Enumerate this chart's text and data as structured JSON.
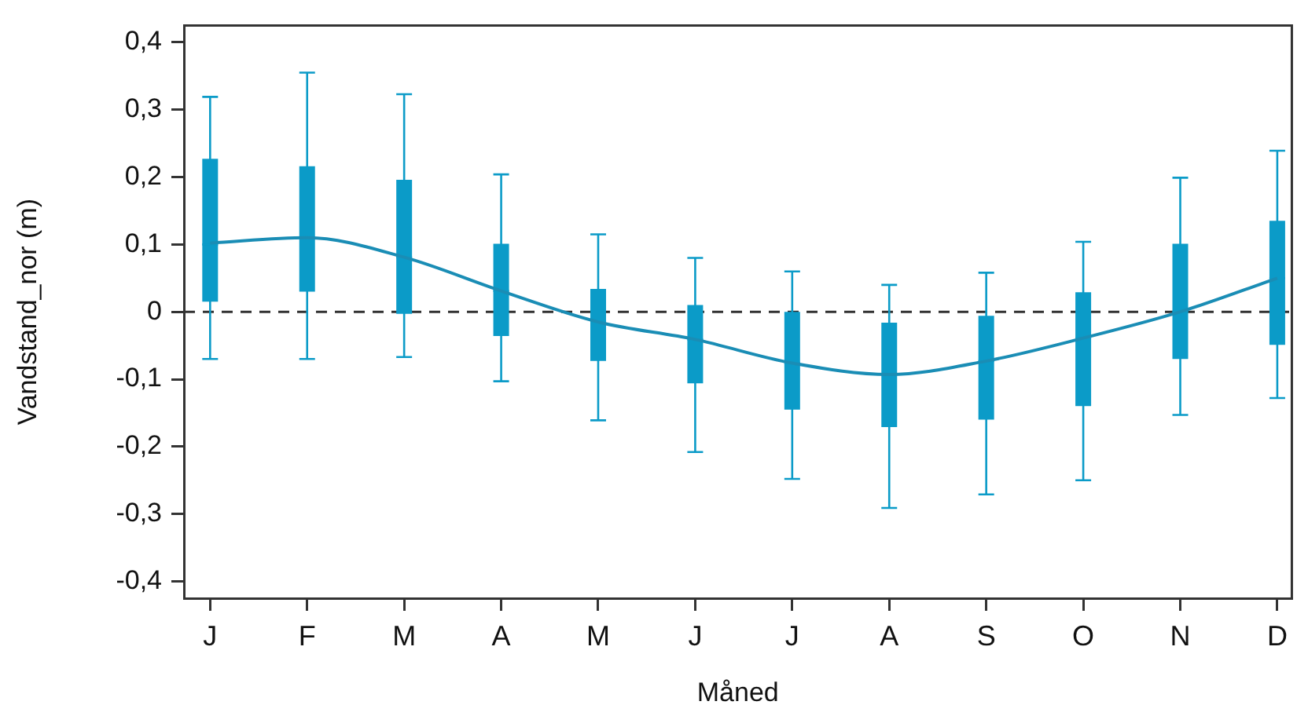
{
  "chart_data": {
    "type": "box",
    "xlabel": "Måned",
    "ylabel": "Vandstand_nor (m)",
    "categories": [
      "J",
      "F",
      "M",
      "A",
      "M",
      "J",
      "J",
      "A",
      "S",
      "O",
      "N",
      "D"
    ],
    "ylim": [
      -0.425,
      0.425
    ],
    "yticks": [
      {
        "value": -0.4,
        "label": "-0,4"
      },
      {
        "value": -0.3,
        "label": "-0,3"
      },
      {
        "value": -0.2,
        "label": "-0,2"
      },
      {
        "value": -0.1,
        "label": "-0,1"
      },
      0,
      {
        "value": 0.1,
        "label": "0,1"
      },
      {
        "value": 0.2,
        "label": "0,2"
      },
      {
        "value": 0.3,
        "label": "0,3"
      },
      {
        "value": 0.4,
        "label": "0,4"
      }
    ],
    "grid": false,
    "legend": false,
    "ref_lines": [
      {
        "axis": "y",
        "value": 0,
        "color": "#333333",
        "line_style": "dashed"
      }
    ],
    "series": [
      {
        "color": "#0b9bc8",
        "boxes": [
          {
            "low": -0.07,
            "q1": 0.015,
            "median": 0.1,
            "q3": 0.227,
            "high": 0.319
          },
          {
            "low": -0.07,
            "q1": 0.03,
            "median": 0.11,
            "q3": 0.216,
            "high": 0.355
          },
          {
            "low": -0.067,
            "q1": -0.003,
            "median": 0.081,
            "q3": 0.196,
            "high": 0.323
          },
          {
            "low": -0.103,
            "q1": -0.036,
            "median": 0.031,
            "q3": 0.101,
            "high": 0.204
          },
          {
            "low": -0.161,
            "q1": -0.073,
            "median": -0.015,
            "q3": 0.034,
            "high": 0.115
          },
          {
            "low": -0.208,
            "q1": -0.106,
            "median": -0.041,
            "q3": 0.01,
            "high": 0.08
          },
          {
            "low": -0.248,
            "q1": -0.145,
            "median": -0.076,
            "q3": 0.0,
            "high": 0.06
          },
          {
            "low": -0.291,
            "q1": -0.171,
            "median": -0.093,
            "q3": -0.016,
            "high": 0.04
          },
          {
            "low": -0.271,
            "q1": -0.16,
            "median": -0.073,
            "q3": -0.006,
            "high": 0.058
          },
          {
            "low": -0.25,
            "q1": -0.14,
            "median": -0.039,
            "q3": 0.029,
            "high": 0.104
          },
          {
            "low": -0.153,
            "q1": -0.07,
            "median": 0.0,
            "q3": 0.101,
            "high": 0.199
          },
          {
            "low": -0.128,
            "q1": -0.049,
            "median": 0.05,
            "q3": 0.135,
            "high": 0.239
          }
        ]
      },
      {
        "type": "line",
        "color": "#1a8db5",
        "marker": "none",
        "values": [
          0.102,
          0.11,
          0.081,
          0.031,
          -0.015,
          -0.041,
          -0.076,
          -0.093,
          -0.073,
          -0.039,
          0.0,
          0.05
        ]
      }
    ]
  }
}
